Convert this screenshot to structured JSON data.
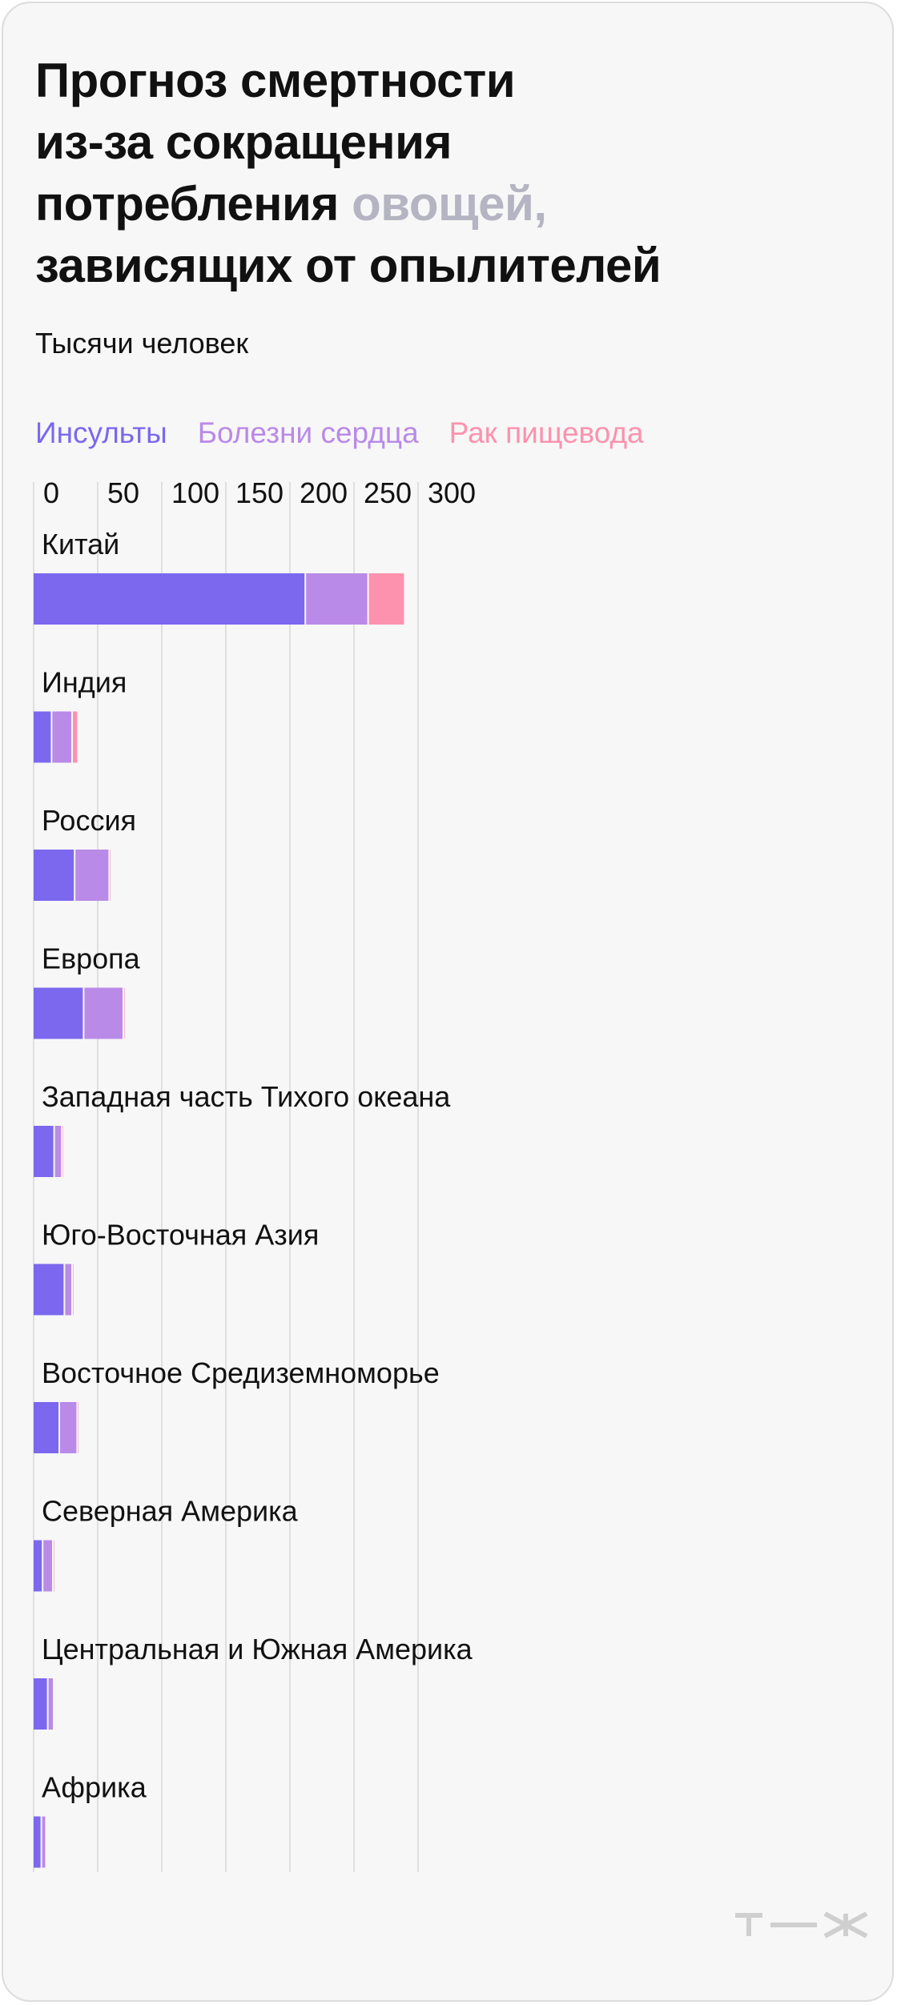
{
  "title": {
    "line1": "Прогноз смертности",
    "line2": "из-за сокращения",
    "line3_a": "потребления",
    "line3_b": "овощей,",
    "line4": "зависящих от опылителей"
  },
  "subtitle": "Тысячи человек",
  "logo": "т—ж",
  "colors": {
    "strokes": "#7b68ee",
    "heart": "#b98ae8",
    "esophagus": "#fc92ae",
    "title_highlight": "#b4b4c2",
    "grid": "#d7d7d7"
  },
  "chart_data": {
    "type": "bar",
    "orientation": "horizontal",
    "stacked": true,
    "xlim": [
      0,
      300
    ],
    "ticks": [
      0,
      50,
      100,
      150,
      200,
      250,
      300
    ],
    "grid": true,
    "legend_position": "top",
    "categories": [
      "Китай",
      "Индия",
      "Россия",
      "Европа",
      "Западная часть Тихого океана",
      "Юго-Восточная Азия",
      "Восточное Средиземноморье",
      "Северная Америка",
      "Центральная и Южная Америка",
      "Африка"
    ],
    "series": [
      {
        "name": "Инсульты",
        "color": "#7b68ee",
        "values": [
          212,
          14,
          32,
          39,
          16,
          24,
          20,
          7,
          11,
          6
        ]
      },
      {
        "name": "Болезни сердца",
        "color": "#b98ae8",
        "values": [
          49,
          16,
          27,
          31,
          6,
          6,
          14,
          8,
          4,
          3
        ]
      },
      {
        "name": "Рак пищевода",
        "color": "#fc92ae",
        "values": [
          28,
          4,
          1,
          1,
          1,
          1,
          1,
          1,
          0,
          0
        ]
      }
    ]
  }
}
